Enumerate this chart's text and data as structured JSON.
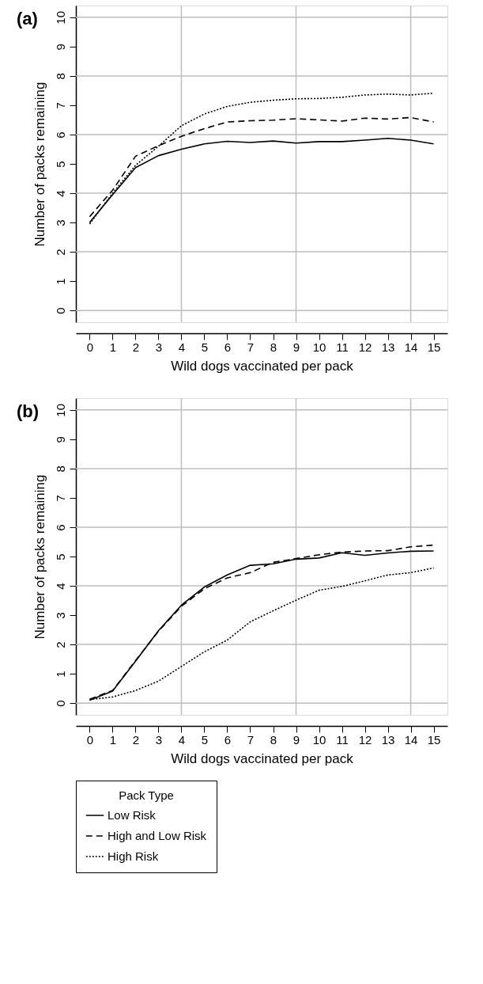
{
  "chart_data": [
    {
      "type": "line",
      "title": "(a)",
      "xlabel": "Wild dogs vaccinated per pack",
      "ylabel": "Number of packs remaining",
      "x": [
        0,
        1,
        2,
        3,
        4,
        5,
        6,
        7,
        8,
        9,
        10,
        11,
        12,
        13,
        14,
        15
      ],
      "series": [
        {
          "color": "#000000",
          "line_style": "solid",
          "values": [
            3.0,
            3.95,
            4.87,
            5.28,
            5.5,
            5.68,
            5.77,
            5.73,
            5.78,
            5.71,
            5.76,
            5.76,
            5.81,
            5.87,
            5.81,
            5.68
          ]
        },
        {
          "color": "#000000",
          "line_style": "dashed",
          "values": [
            3.2,
            4.1,
            5.26,
            5.62,
            5.94,
            6.2,
            6.43,
            6.47,
            6.49,
            6.54,
            6.5,
            6.46,
            6.56,
            6.53,
            6.58,
            6.43
          ]
        },
        {
          "color": "#000000",
          "line_style": "dotted",
          "values": [
            2.95,
            4.0,
            4.95,
            5.6,
            6.3,
            6.7,
            6.96,
            7.1,
            7.17,
            7.22,
            7.23,
            7.27,
            7.35,
            7.38,
            7.35,
            7.41
          ]
        }
      ],
      "xlim": [
        -0.6,
        15.6
      ],
      "ylim": [
        -0.4,
        10.4
      ],
      "xticks": [
        0,
        1,
        2,
        3,
        4,
        5,
        6,
        7,
        8,
        9,
        10,
        11,
        12,
        13,
        14,
        15
      ],
      "yticks": [
        0,
        1,
        2,
        3,
        4,
        5,
        6,
        7,
        8,
        9,
        10
      ],
      "ref_lines": [
        {
          "axis": "x",
          "value": 4,
          "color": "#bebebe"
        },
        {
          "axis": "x",
          "value": 9,
          "color": "#bebebe"
        },
        {
          "axis": "x",
          "value": 14,
          "color": "#bebebe"
        },
        {
          "axis": "y",
          "value": 0,
          "color": "#bebebe"
        },
        {
          "axis": "y",
          "value": 2,
          "color": "#bebebe"
        },
        {
          "axis": "y",
          "value": 4,
          "color": "#bebebe"
        },
        {
          "axis": "y",
          "value": 6,
          "color": "#bebebe"
        },
        {
          "axis": "y",
          "value": 8,
          "color": "#bebebe"
        },
        {
          "axis": "y",
          "value": 10,
          "color": "#bebebe"
        }
      ]
    },
    {
      "type": "line",
      "title": "(b)",
      "xlabel": "Wild dogs vaccinated per pack",
      "ylabel": "Number of packs remaining",
      "legend_title": "Pack Type",
      "x": [
        0,
        1,
        2,
        3,
        4,
        5,
        6,
        7,
        8,
        9,
        10,
        11,
        12,
        13,
        14,
        15
      ],
      "series": [
        {
          "name": "Low Risk",
          "color": "#000000",
          "line_style": "solid",
          "values": [
            0.1,
            0.41,
            1.43,
            2.47,
            3.34,
            3.96,
            4.37,
            4.7,
            4.75,
            4.91,
            4.95,
            5.13,
            5.04,
            5.12,
            5.18,
            5.19
          ]
        },
        {
          "name": "High and Low Risk",
          "color": "#000000",
          "line_style": "dashed",
          "values": [
            0.13,
            0.43,
            1.45,
            2.45,
            3.3,
            3.9,
            4.27,
            4.45,
            4.8,
            4.93,
            5.06,
            5.15,
            5.19,
            5.2,
            5.33,
            5.39
          ]
        },
        {
          "name": "High Risk",
          "color": "#000000",
          "line_style": "dotted",
          "values": [
            0.12,
            0.21,
            0.43,
            0.75,
            1.25,
            1.75,
            2.15,
            2.77,
            3.15,
            3.51,
            3.85,
            3.98,
            4.17,
            4.37,
            4.45,
            4.61
          ]
        }
      ],
      "xlim": [
        -0.6,
        15.6
      ],
      "ylim": [
        -0.4,
        10.4
      ],
      "xticks": [
        0,
        1,
        2,
        3,
        4,
        5,
        6,
        7,
        8,
        9,
        10,
        11,
        12,
        13,
        14,
        15
      ],
      "yticks": [
        0,
        1,
        2,
        3,
        4,
        5,
        6,
        7,
        8,
        9,
        10
      ],
      "legend": "bottom",
      "ref_lines": [
        {
          "axis": "x",
          "value": 4,
          "color": "#bebebe"
        },
        {
          "axis": "x",
          "value": 9,
          "color": "#bebebe"
        },
        {
          "axis": "x",
          "value": 14,
          "color": "#bebebe"
        },
        {
          "axis": "y",
          "value": 0,
          "color": "#bebebe"
        },
        {
          "axis": "y",
          "value": 2,
          "color": "#bebebe"
        },
        {
          "axis": "y",
          "value": 4,
          "color": "#bebebe"
        },
        {
          "axis": "y",
          "value": 6,
          "color": "#bebebe"
        },
        {
          "axis": "y",
          "value": 8,
          "color": "#bebebe"
        },
        {
          "axis": "y",
          "value": 10,
          "color": "#bebebe"
        }
      ]
    }
  ]
}
